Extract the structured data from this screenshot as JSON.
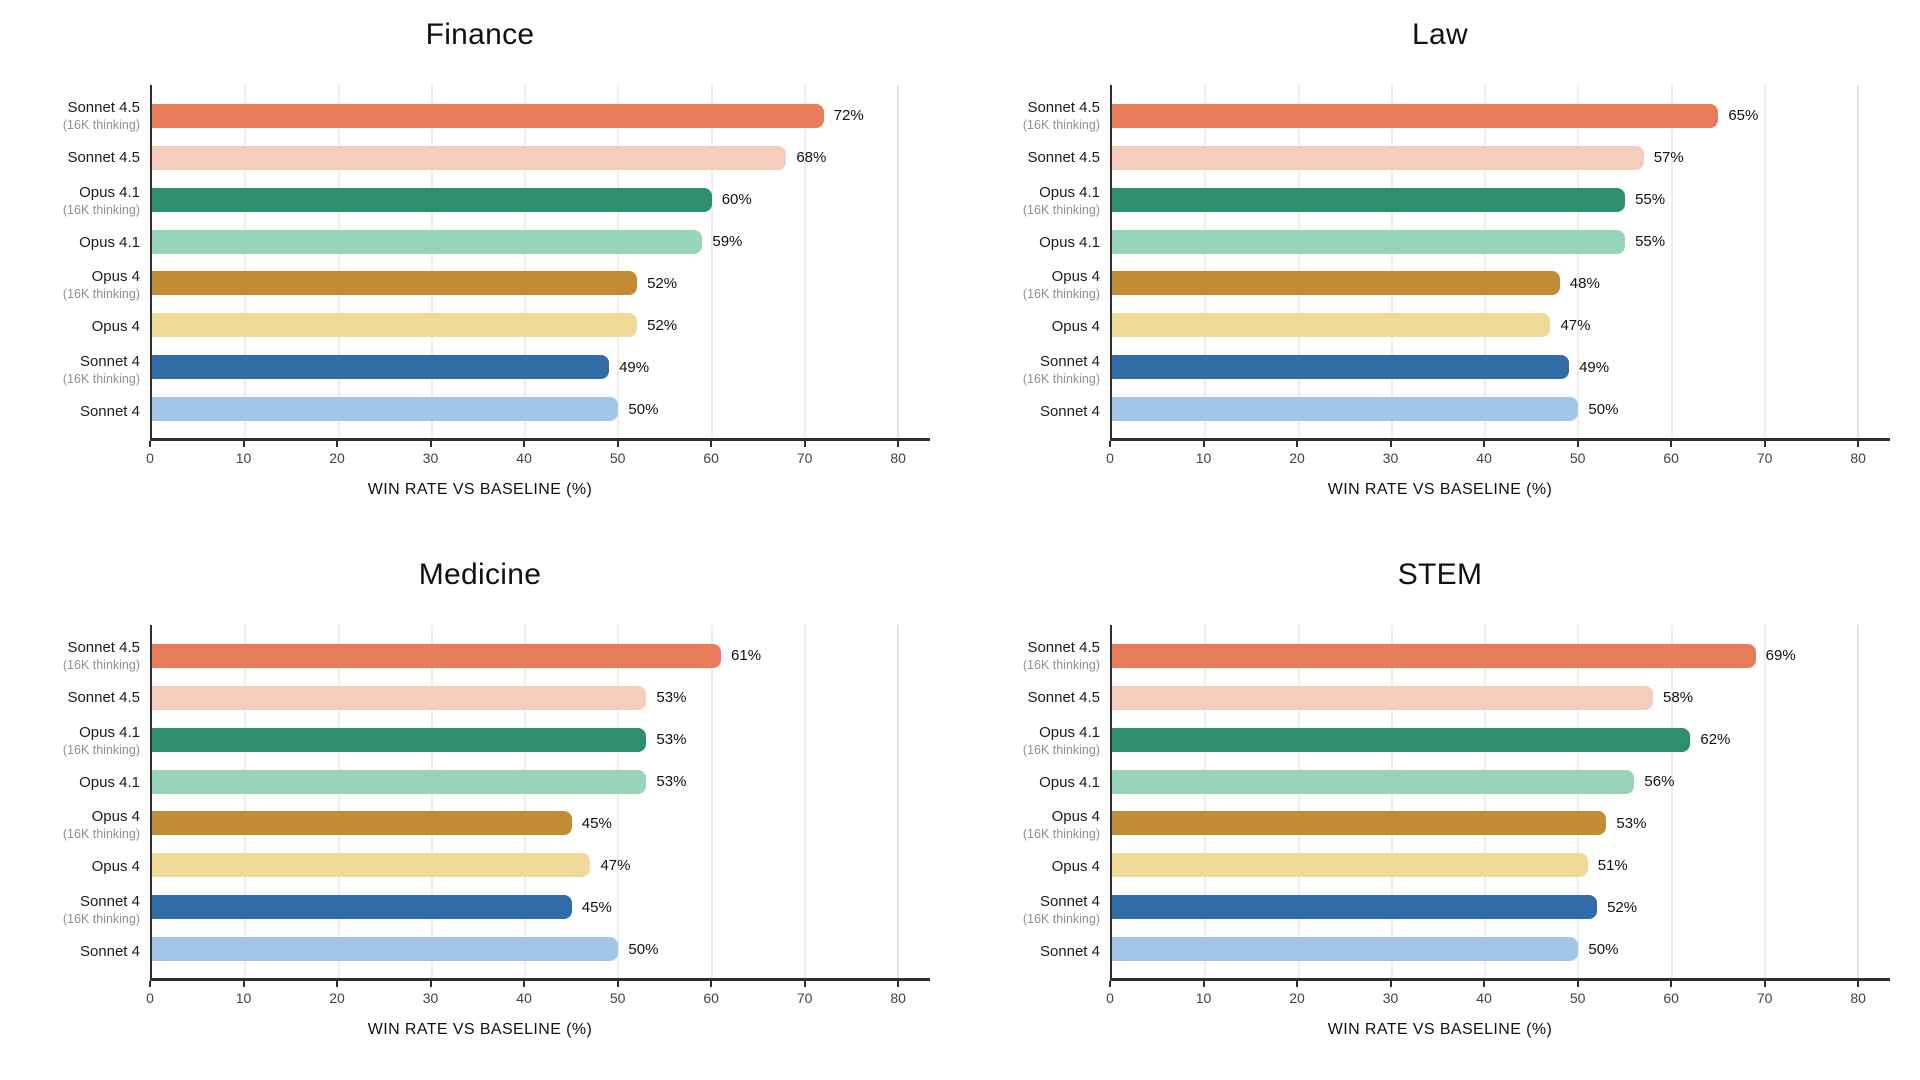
{
  "style": {
    "background": "#ffffff",
    "axis_color": "#2e2e2e",
    "grid_color": "#eeeeee",
    "grid_accent_color": "#e9e6d9",
    "title_color": "#111111",
    "label_color": "#1c1c1c",
    "sublabel_color": "#909090",
    "tick_color": "#424242",
    "value_color": "#111111",
    "bar_palette": [
      "#E77B5A",
      "#F6CDBC",
      "#2F8E6E",
      "#97D4B9",
      "#C28C35",
      "#F1DA97",
      "#2F6CA8",
      "#A3C6E8"
    ]
  },
  "chart_data": [
    {
      "type": "bar",
      "orientation": "horizontal",
      "title": "Finance",
      "xlabel": "WIN RATE VS BASELINE (%)",
      "grid": "vertical",
      "legend": "none",
      "xticks": [
        0,
        10,
        20,
        30,
        40,
        50,
        60,
        70,
        80
      ],
      "xtick_labels": [
        "0",
        "10",
        "20",
        "30",
        "40",
        "50",
        "60",
        "70",
        "80"
      ],
      "xlim": [
        0,
        83.4
      ],
      "accent_gridline_at": 80,
      "categories": [
        {
          "name": "Sonnet 4.5",
          "sub": "(16K thinking)"
        },
        {
          "name": "Sonnet 4.5",
          "sub": ""
        },
        {
          "name": "Opus 4.1",
          "sub": "(16K thinking)"
        },
        {
          "name": "Opus 4.1",
          "sub": ""
        },
        {
          "name": "Opus 4",
          "sub": "(16K thinking)"
        },
        {
          "name": "Opus 4",
          "sub": ""
        },
        {
          "name": "Sonnet 4",
          "sub": "(16K thinking)"
        },
        {
          "name": "Sonnet 4",
          "sub": ""
        }
      ],
      "values": [
        72,
        68,
        60,
        59,
        52,
        52,
        49,
        50
      ],
      "value_labels": [
        "72%",
        "68%",
        "60%",
        "59%",
        "52%",
        "52%",
        "49%",
        "50%"
      ],
      "colors": [
        "#E77B5A",
        "#F6CDBC",
        "#2F8E6E",
        "#97D4B9",
        "#C28C35",
        "#F1DA97",
        "#2F6CA8",
        "#A3C6E8"
      ]
    },
    {
      "type": "bar",
      "orientation": "horizontal",
      "title": "Law",
      "xlabel": "WIN RATE VS BASELINE (%)",
      "grid": "vertical",
      "legend": "none",
      "xticks": [
        0,
        10,
        20,
        30,
        40,
        50,
        60,
        70,
        80
      ],
      "xtick_labels": [
        "0",
        "10",
        "20",
        "30",
        "40",
        "50",
        "60",
        "70",
        "80"
      ],
      "xlim": [
        0,
        83.4
      ],
      "accent_gridline_at": 80,
      "categories": [
        {
          "name": "Sonnet 4.5",
          "sub": "(16K thinking)"
        },
        {
          "name": "Sonnet 4.5",
          "sub": ""
        },
        {
          "name": "Opus 4.1",
          "sub": "(16K thinking)"
        },
        {
          "name": "Opus 4.1",
          "sub": ""
        },
        {
          "name": "Opus 4",
          "sub": "(16K thinking)"
        },
        {
          "name": "Opus 4",
          "sub": ""
        },
        {
          "name": "Sonnet 4",
          "sub": "(16K thinking)"
        },
        {
          "name": "Sonnet 4",
          "sub": ""
        }
      ],
      "values": [
        65,
        57,
        55,
        55,
        48,
        47,
        49,
        50
      ],
      "value_labels": [
        "65%",
        "57%",
        "55%",
        "55%",
        "48%",
        "47%",
        "49%",
        "50%"
      ],
      "colors": [
        "#E77B5A",
        "#F6CDBC",
        "#2F8E6E",
        "#97D4B9",
        "#C28C35",
        "#F1DA97",
        "#2F6CA8",
        "#A3C6E8"
      ]
    },
    {
      "type": "bar",
      "orientation": "horizontal",
      "title": "Medicine",
      "xlabel": "WIN RATE VS BASELINE (%)",
      "grid": "vertical",
      "legend": "none",
      "xticks": [
        0,
        10,
        20,
        30,
        40,
        50,
        60,
        70,
        80
      ],
      "xtick_labels": [
        "0",
        "10",
        "20",
        "30",
        "40",
        "50",
        "60",
        "70",
        "80"
      ],
      "xlim": [
        0,
        83.4
      ],
      "accent_gridline_at": 80,
      "categories": [
        {
          "name": "Sonnet 4.5",
          "sub": "(16K thinking)"
        },
        {
          "name": "Sonnet 4.5",
          "sub": ""
        },
        {
          "name": "Opus 4.1",
          "sub": "(16K thinking)"
        },
        {
          "name": "Opus 4.1",
          "sub": ""
        },
        {
          "name": "Opus 4",
          "sub": "(16K thinking)"
        },
        {
          "name": "Opus 4",
          "sub": ""
        },
        {
          "name": "Sonnet 4",
          "sub": "(16K thinking)"
        },
        {
          "name": "Sonnet 4",
          "sub": ""
        }
      ],
      "values": [
        61,
        53,
        53,
        53,
        45,
        47,
        45,
        50
      ],
      "value_labels": [
        "61%",
        "53%",
        "53%",
        "53%",
        "45%",
        "47%",
        "45%",
        "50%"
      ],
      "colors": [
        "#E77B5A",
        "#F6CDBC",
        "#2F8E6E",
        "#97D4B9",
        "#C28C35",
        "#F1DA97",
        "#2F6CA8",
        "#A3C6E8"
      ]
    },
    {
      "type": "bar",
      "orientation": "horizontal",
      "title": "STEM",
      "xlabel": "WIN RATE VS BASELINE (%)",
      "grid": "vertical",
      "legend": "none",
      "xticks": [
        0,
        10,
        20,
        30,
        40,
        50,
        60,
        70,
        80
      ],
      "xtick_labels": [
        "0",
        "10",
        "20",
        "30",
        "40",
        "50",
        "60",
        "70",
        "80"
      ],
      "xlim": [
        0,
        83.4
      ],
      "accent_gridline_at": 80,
      "categories": [
        {
          "name": "Sonnet 4.5",
          "sub": "(16K thinking)"
        },
        {
          "name": "Sonnet 4.5",
          "sub": ""
        },
        {
          "name": "Opus 4.1",
          "sub": "(16K thinking)"
        },
        {
          "name": "Opus 4.1",
          "sub": ""
        },
        {
          "name": "Opus 4",
          "sub": "(16K thinking)"
        },
        {
          "name": "Opus 4",
          "sub": ""
        },
        {
          "name": "Sonnet 4",
          "sub": "(16K thinking)"
        },
        {
          "name": "Sonnet 4",
          "sub": ""
        }
      ],
      "values": [
        69,
        58,
        62,
        56,
        53,
        51,
        52,
        50
      ],
      "value_labels": [
        "69%",
        "58%",
        "62%",
        "56%",
        "53%",
        "51%",
        "52%",
        "50%"
      ],
      "colors": [
        "#E77B5A",
        "#F6CDBC",
        "#2F8E6E",
        "#97D4B9",
        "#C28C35",
        "#F1DA97",
        "#2F6CA8",
        "#A3C6E8"
      ]
    }
  ]
}
